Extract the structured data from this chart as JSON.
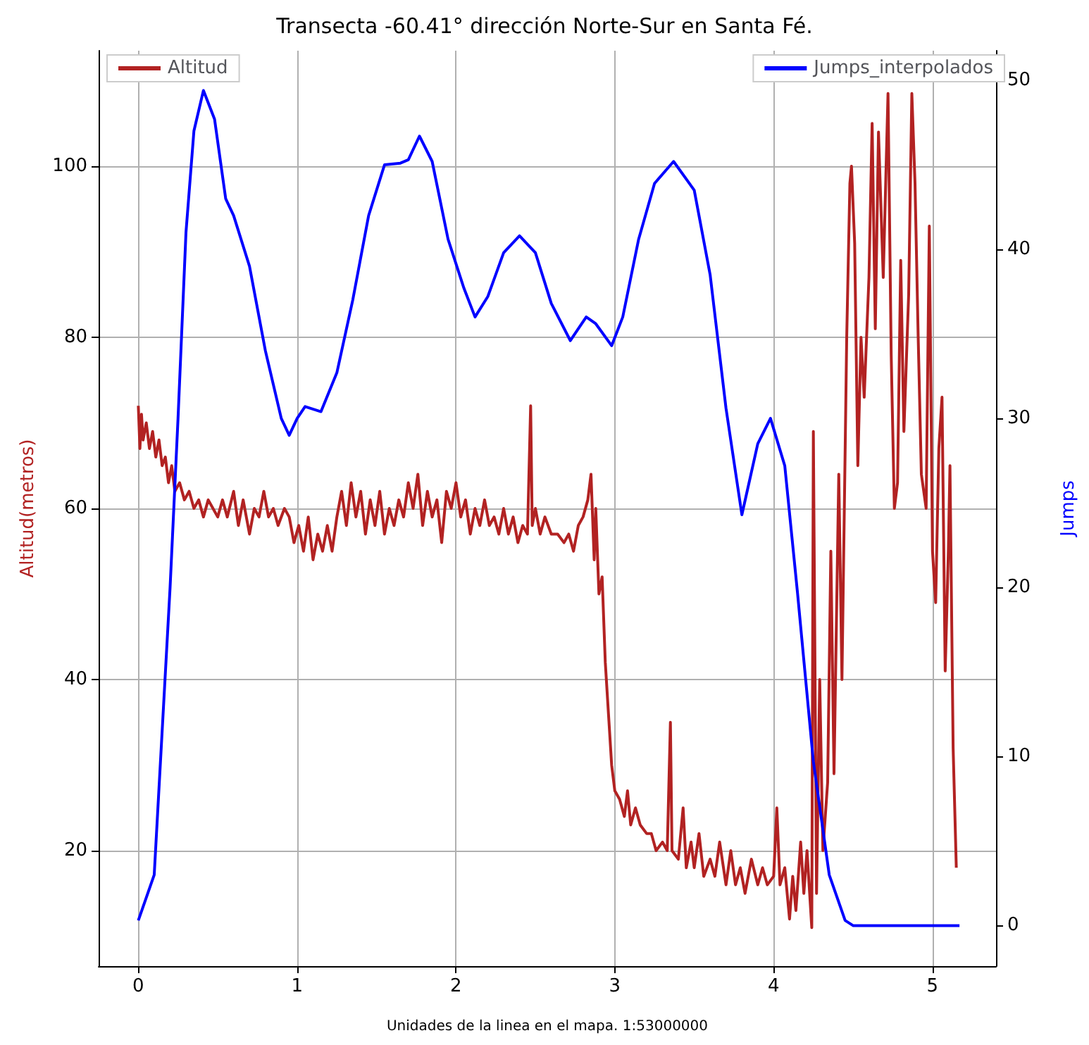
{
  "chart_data": {
    "type": "line",
    "title": "Transecta -60.41° dirección Norte-Sur en Santa Fé.",
    "xlabel": "Unidades de la linea en el mapa. 1:53000000",
    "ylabel": "Altitud(metros)",
    "y2label": "Jumps",
    "xlim": [
      -0.25,
      5.4
    ],
    "xticks": [
      0,
      1,
      2,
      3,
      4,
      5
    ],
    "ylim": [
      6.5,
      113.5
    ],
    "yticks": [
      20,
      40,
      60,
      80,
      100
    ],
    "y2lim": [
      -2.4,
      51.75
    ],
    "y2ticks": [
      0,
      10,
      20,
      30,
      40,
      50
    ],
    "grid": true,
    "legend": "top",
    "series": [
      {
        "name": "Altitud",
        "color": "#b22222",
        "x": [
          0,
          0.01,
          0.02,
          0.03,
          0.05,
          0.07,
          0.09,
          0.11,
          0.13,
          0.15,
          0.17,
          0.19,
          0.21,
          0.23,
          0.26,
          0.29,
          0.32,
          0.35,
          0.38,
          0.41,
          0.44,
          0.47,
          0.5,
          0.53,
          0.56,
          0.6,
          0.63,
          0.66,
          0.7,
          0.73,
          0.76,
          0.79,
          0.82,
          0.85,
          0.88,
          0.92,
          0.95,
          0.98,
          1.01,
          1.04,
          1.07,
          1.1,
          1.13,
          1.16,
          1.19,
          1.22,
          1.25,
          1.28,
          1.31,
          1.34,
          1.37,
          1.4,
          1.43,
          1.46,
          1.49,
          1.52,
          1.55,
          1.58,
          1.61,
          1.64,
          1.67,
          1.7,
          1.73,
          1.76,
          1.79,
          1.82,
          1.85,
          1.88,
          1.91,
          1.94,
          1.97,
          2.0,
          2.03,
          2.06,
          2.09,
          2.12,
          2.15,
          2.18,
          2.21,
          2.24,
          2.27,
          2.3,
          2.33,
          2.36,
          2.39,
          2.42,
          2.45,
          2.47,
          2.48,
          2.5,
          2.53,
          2.56,
          2.6,
          2.64,
          2.68,
          2.71,
          2.74,
          2.77,
          2.8,
          2.83,
          2.85,
          2.87,
          2.88,
          2.9,
          2.92,
          2.94,
          2.96,
          2.98,
          3.0,
          3.03,
          3.06,
          3.08,
          3.1,
          3.13,
          3.16,
          3.2,
          3.23,
          3.26,
          3.3,
          3.33,
          3.35,
          3.36,
          3.4,
          3.43,
          3.45,
          3.48,
          3.5,
          3.53,
          3.56,
          3.6,
          3.63,
          3.66,
          3.7,
          3.73,
          3.76,
          3.79,
          3.82,
          3.86,
          3.9,
          3.93,
          3.96,
          4.0,
          4.02,
          4.04,
          4.07,
          4.1,
          4.12,
          4.14,
          4.17,
          4.19,
          4.21,
          4.24,
          4.25,
          4.27,
          4.29,
          4.31,
          4.34,
          4.36,
          4.38,
          4.41,
          4.43,
          4.46,
          4.48,
          4.49,
          4.51,
          4.53,
          4.55,
          4.57,
          4.6,
          4.62,
          4.64,
          4.66,
          4.69,
          4.72,
          4.74,
          4.76,
          4.78,
          4.8,
          4.82,
          4.85,
          4.87,
          4.89,
          4.91,
          4.93,
          4.96,
          4.98,
          5.0,
          5.02,
          5.04,
          5.06,
          5.08,
          5.1,
          5.11,
          5.13,
          5.15
        ],
        "values": [
          72,
          67,
          71,
          68,
          70,
          67,
          69,
          66,
          68,
          65,
          66,
          63,
          65,
          62,
          63,
          61,
          62,
          60,
          61,
          59,
          61,
          60,
          59,
          61,
          59,
          62,
          58,
          61,
          57,
          60,
          59,
          62,
          59,
          60,
          58,
          60,
          59,
          56,
          58,
          55,
          59,
          54,
          57,
          55,
          58,
          55,
          59,
          62,
          58,
          63,
          59,
          62,
          57,
          61,
          58,
          62,
          57,
          60,
          58,
          61,
          59,
          63,
          60,
          64,
          58,
          62,
          59,
          61,
          56,
          62,
          60,
          63,
          59,
          61,
          57,
          60,
          58,
          61,
          58,
          59,
          57,
          60,
          57,
          59,
          56,
          58,
          57,
          72,
          58,
          60,
          57,
          59,
          57,
          57,
          56,
          57,
          55,
          58,
          59,
          61,
          64,
          54,
          60,
          50,
          52,
          42,
          36,
          30,
          27,
          26,
          24,
          27,
          23,
          25,
          23,
          22,
          22,
          20,
          21,
          20,
          35,
          20,
          19,
          25,
          18,
          21,
          18,
          22,
          17,
          19,
          17,
          21,
          16,
          20,
          16,
          18,
          15,
          19,
          16,
          18,
          16,
          17,
          25,
          16,
          18,
          12,
          17,
          13,
          21,
          15,
          20,
          11,
          69,
          15,
          40,
          20,
          28,
          55,
          29,
          64,
          40,
          80,
          98,
          100,
          91,
          65,
          80,
          73,
          87,
          105,
          81,
          104,
          87,
          108.5,
          78,
          60,
          63,
          89,
          69,
          85,
          108.5,
          98,
          80,
          64,
          60,
          93,
          55,
          49,
          67,
          73,
          41,
          55,
          65,
          32,
          18
        ]
      },
      {
        "name": "Jumps_interpolados",
        "color": "#0000ff",
        "axis": "y2",
        "x": [
          0,
          0.1,
          0.2,
          0.25,
          0.3,
          0.35,
          0.41,
          0.48,
          0.55,
          0.6,
          0.7,
          0.8,
          0.9,
          0.95,
          1.0,
          1.05,
          1.15,
          1.25,
          1.35,
          1.45,
          1.55,
          1.65,
          1.7,
          1.77,
          1.85,
          1.95,
          2.05,
          2.12,
          2.2,
          2.3,
          2.4,
          2.5,
          2.6,
          2.72,
          2.82,
          2.88,
          2.98,
          3.05,
          3.15,
          3.25,
          3.37,
          3.5,
          3.6,
          3.7,
          3.8,
          3.9,
          3.98,
          4.07,
          4.15,
          4.25,
          4.35,
          4.45,
          4.5,
          4.7,
          4.9,
          5.17
        ],
        "values": [
          0.3,
          3,
          20,
          30,
          41,
          47,
          49.4,
          47.7,
          43,
          42,
          39,
          34,
          30,
          29,
          30,
          30.7,
          30.4,
          32.7,
          37,
          42,
          45,
          45.1,
          45.3,
          46.7,
          45.2,
          40.6,
          37.7,
          36,
          37.2,
          39.8,
          40.8,
          39.8,
          36.8,
          34.6,
          36,
          35.6,
          34.3,
          36,
          40.6,
          43.9,
          45.2,
          43.5,
          38.5,
          30.6,
          24.3,
          28.5,
          30,
          27.2,
          19.7,
          9.7,
          3,
          0.3,
          0,
          0,
          0,
          0
        ]
      }
    ]
  }
}
